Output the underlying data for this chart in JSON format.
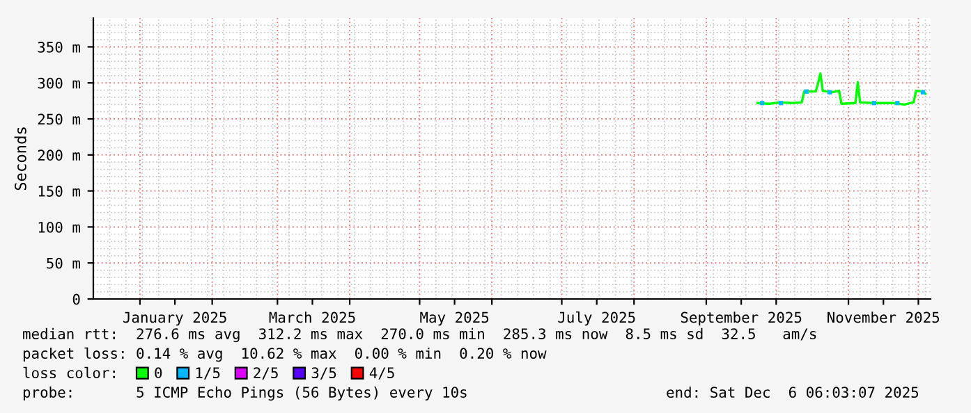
{
  "chart_data": {
    "type": "line",
    "ylabel": "Seconds",
    "xlim": [
      "2024-12-12",
      "2025-12-06T06:03"
    ],
    "ylim": [
      0,
      390
    ],
    "yticks": [
      0,
      {
        "value": 50,
        "label": "50 m"
      },
      {
        "value": 100,
        "label": "100 m"
      },
      {
        "value": 150,
        "label": "150 m"
      },
      {
        "value": 200,
        "label": "200 m"
      },
      {
        "value": 250,
        "label": "250 m"
      },
      {
        "value": 300,
        "label": "300 m"
      },
      {
        "value": 350,
        "label": "350 m"
      }
    ],
    "xticks": [
      {
        "value": "2025-01-01",
        "label": null
      },
      {
        "value": "2025-01-16",
        "label": "January 2025"
      },
      {
        "value": "2025-02-01",
        "label": null
      },
      {
        "value": "2025-03-01",
        "label": null
      },
      {
        "value": "2025-03-16",
        "label": "March 2025"
      },
      {
        "value": "2025-04-01",
        "label": null
      },
      {
        "value": "2025-05-01",
        "label": null
      },
      {
        "value": "2025-05-16",
        "label": "May 2025"
      },
      {
        "value": "2025-06-01",
        "label": null
      },
      {
        "value": "2025-07-01",
        "label": null
      },
      {
        "value": "2025-07-16",
        "label": "July 2025"
      },
      {
        "value": "2025-08-01",
        "label": null
      },
      {
        "value": "2025-09-01",
        "label": null
      },
      {
        "value": "2025-09-16",
        "label": "September 2025"
      },
      {
        "value": "2025-10-01",
        "label": null
      },
      {
        "value": "2025-11-01",
        "label": null
      },
      {
        "value": "2025-11-16",
        "label": "November 2025"
      },
      {
        "value": "2025-12-01",
        "label": null
      }
    ],
    "grid": true,
    "legend": "bottom",
    "legend_title": "loss color:",
    "marker": "none",
    "line_style": "solid",
    "series": [
      {
        "name": "0",
        "color": "#00ff00",
        "x": [
          "2025-09-23",
          "2025-09-28",
          "2025-10-03",
          "2025-10-08",
          "2025-10-12",
          "2025-10-13",
          "2025-10-18",
          "2025-10-19",
          "2025-10-20",
          "2025-10-21",
          "2025-10-25",
          "2025-10-28",
          "2025-10-29",
          "2025-11-04",
          "2025-11-05",
          "2025-11-06",
          "2025-11-12",
          "2025-11-20",
          "2025-11-25",
          "2025-11-29",
          "2025-11-30",
          "2025-12-03",
          "2025-12-04"
        ],
        "values": [
          272,
          271,
          273,
          272,
          273,
          288,
          288,
          300,
          313,
          289,
          287,
          289,
          271,
          272,
          301,
          273,
          272,
          272,
          270,
          273,
          289,
          288,
          285
        ]
      },
      {
        "name": "1/5",
        "color": "#00b8ff",
        "type": "scatter",
        "marker": "square",
        "x": [
          "2025-09-25",
          "2025-10-03",
          "2025-10-14",
          "2025-10-24",
          "2025-11-12",
          "2025-11-22",
          "2025-12-03"
        ],
        "values": [
          272,
          272,
          288,
          287,
          272,
          272,
          287
        ]
      },
      {
        "name": "2/5",
        "color": "#dd00ff",
        "type": "scatter"
      },
      {
        "name": "3/5",
        "color": "#5500ff",
        "type": "scatter"
      },
      {
        "name": "4/5",
        "color": "#ff0000",
        "type": "scatter"
      }
    ],
    "annotations": [
      "median rtt:  276.6 ms avg  312.2 ms max  270.0 ms min  285.3 ms now  8.5 ms sd  32.5   am/s",
      "packet loss: 0.14 % avg  10.62 % max  0.00 % min  0.20 % now",
      "probe:       5 ICMP Echo Pings (56 Bytes) every 10s",
      "end: Sat Dec  6 06:03:07 2025"
    ]
  }
}
